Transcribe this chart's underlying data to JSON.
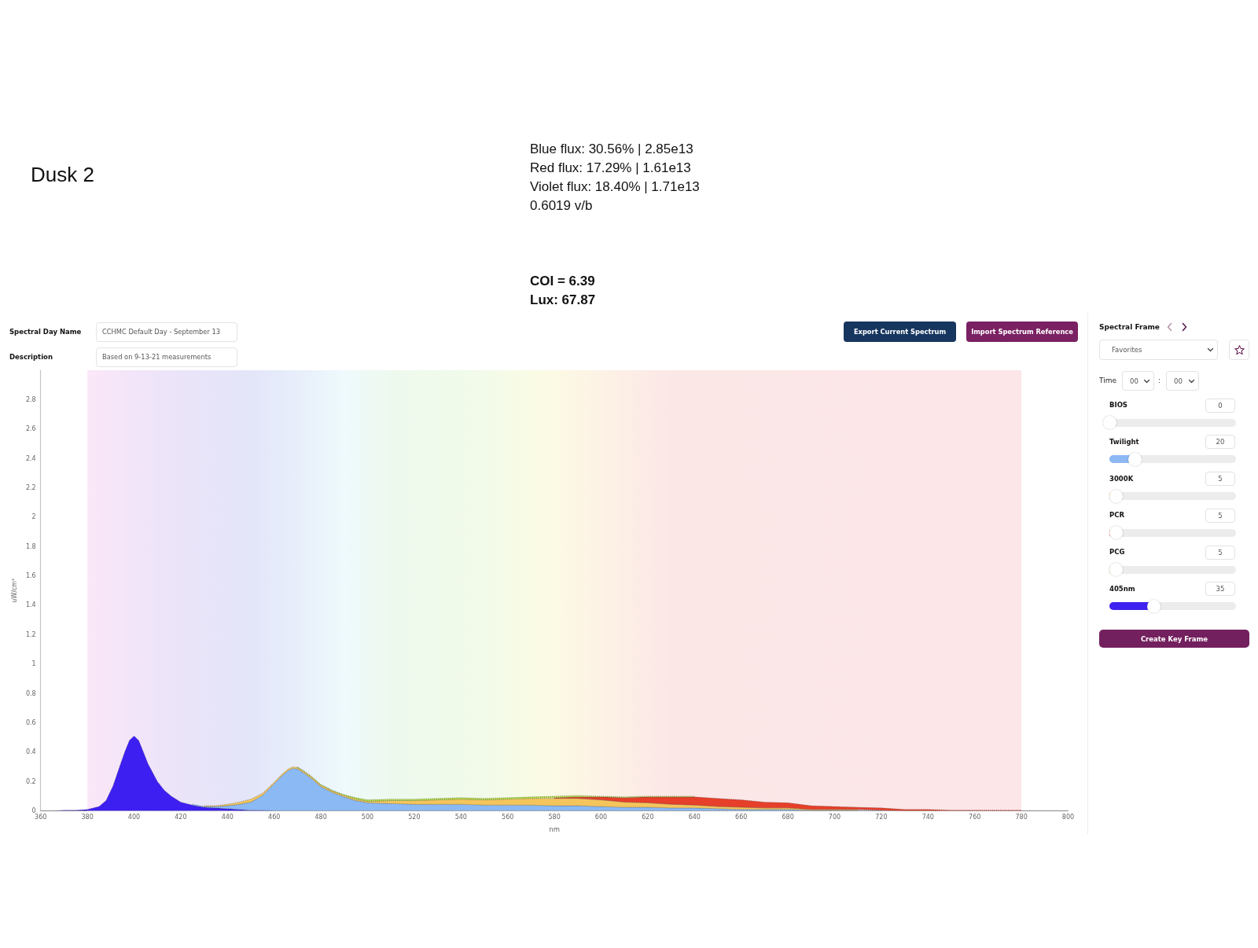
{
  "chart_data": [
    {
      "type": "other",
      "title": "Dusk 2",
      "annotations": [
        "Blue flux: 30.56% | 2.85e13",
        "Red flux: 17.29% | 1.61e13",
        "Violet flux: 18.40% | 1.71e13",
        "0.6019 v/b",
        "COI = 6.39",
        "Lux: 67.87"
      ]
    },
    {
      "type": "area",
      "stacked": true,
      "annotations": [
        "Spectral Day Name",
        "CCHMC Default Day - September 13",
        "Description",
        "Based on 9-13-21 measurements",
        "Export Current Spectrum",
        "Import Spectrum Reference"
      ],
      "xlabel": "nm",
      "ylabel": "uW/cm²",
      "x": [
        360,
        365,
        370,
        375,
        380,
        385,
        388,
        391,
        394,
        396,
        398,
        400,
        402,
        404,
        406,
        408,
        410,
        413,
        416,
        420,
        425,
        430,
        435,
        440,
        445,
        450,
        455,
        460,
        463,
        466,
        468,
        470,
        473,
        476,
        480,
        485,
        490,
        495,
        500,
        510,
        520,
        530,
        540,
        550,
        560,
        570,
        580,
        590,
        600,
        610,
        620,
        630,
        640,
        650,
        660,
        670,
        680,
        690,
        700,
        710,
        720,
        730,
        740,
        750,
        760,
        770,
        780,
        790,
        800
      ],
      "series": [
        {
          "color": "#3d1ff2",
          "values": [
            0,
            0,
            0.005,
            0.005,
            0.01,
            0.03,
            0.07,
            0.17,
            0.31,
            0.4,
            0.48,
            0.51,
            0.48,
            0.4,
            0.32,
            0.26,
            0.2,
            0.14,
            0.1,
            0.06,
            0.04,
            0.025,
            0.02,
            0.015,
            0.01,
            0.005,
            0.005,
            0,
            0,
            0,
            0,
            0,
            0,
            0,
            0,
            0,
            0,
            0,
            0,
            0,
            0,
            0,
            0,
            0,
            0,
            0,
            0,
            0,
            0,
            0,
            0,
            0,
            0,
            0,
            0,
            0,
            0,
            0,
            0,
            0,
            0,
            0,
            0,
            0,
            0,
            0,
            0,
            0,
            0
          ]
        },
        {
          "color": "#8ab9f4",
          "values": [
            null,
            null,
            null,
            null,
            null,
            null,
            null,
            null,
            null,
            null,
            null,
            null,
            null,
            null,
            null,
            null,
            null,
            null,
            null,
            null,
            0.005,
            0.005,
            0.01,
            0.02,
            0.035,
            0.055,
            0.1,
            0.185,
            0.235,
            0.275,
            0.29,
            0.285,
            0.255,
            0.22,
            0.165,
            0.125,
            0.095,
            0.07,
            0.055,
            0.05,
            0.045,
            0.045,
            0.045,
            0.04,
            0.04,
            0.04,
            0.035,
            0.035,
            0.03,
            0.025,
            0.025,
            0.02,
            0.02,
            0.015,
            0.01,
            0.01,
            0.01,
            0.005,
            0.005,
            0.005,
            0.005,
            null,
            null,
            null,
            null,
            null,
            null,
            null,
            null
          ]
        },
        {
          "color": "#f4c55c",
          "values": [
            null,
            null,
            null,
            null,
            null,
            null,
            null,
            null,
            null,
            null,
            null,
            null,
            null,
            null,
            null,
            null,
            null,
            null,
            null,
            null,
            null,
            0.005,
            0.005,
            0.01,
            0.015,
            0.02,
            0.015,
            0.01,
            0.01,
            0.01,
            0.01,
            0.01,
            0.01,
            0.01,
            0.01,
            0.01,
            0.01,
            0.01,
            0.01,
            0.02,
            0.025,
            0.03,
            0.035,
            0.035,
            0.04,
            0.045,
            0.05,
            0.05,
            0.045,
            0.035,
            0.03,
            0.025,
            0.02,
            0.015,
            0.015,
            0.01,
            0.01,
            0.005,
            0.005,
            0.005,
            null,
            null,
            null,
            null,
            null,
            null,
            null,
            null,
            null
          ]
        },
        {
          "color": "#e63f2a",
          "values": [
            null,
            null,
            null,
            null,
            null,
            null,
            null,
            null,
            null,
            null,
            null,
            null,
            null,
            null,
            null,
            null,
            null,
            null,
            null,
            null,
            null,
            null,
            null,
            null,
            null,
            null,
            null,
            null,
            null,
            null,
            null,
            null,
            null,
            null,
            null,
            null,
            null,
            null,
            null,
            null,
            null,
            null,
            null,
            null,
            null,
            null,
            0.005,
            0.01,
            0.02,
            0.03,
            0.04,
            0.05,
            0.055,
            0.055,
            0.05,
            0.04,
            0.035,
            0.025,
            0.02,
            0.015,
            0.015,
            0.01,
            0.01,
            0.005,
            0.005,
            0.005,
            0.005,
            null,
            null
          ]
        },
        {
          "color": "#b4dc4a",
          "values": [
            null,
            null,
            null,
            null,
            null,
            null,
            null,
            null,
            null,
            null,
            null,
            null,
            null,
            null,
            null,
            null,
            null,
            null,
            null,
            null,
            null,
            null,
            null,
            null,
            null,
            null,
            null,
            null,
            null,
            null,
            null,
            0.005,
            0.005,
            0.005,
            0.005,
            0.005,
            0.005,
            0.01,
            0.01,
            0.01,
            0.01,
            0.01,
            0.01,
            0.01,
            0.01,
            0.01,
            0.01,
            0.01,
            0.005,
            0.005,
            0.005,
            0.005,
            0.005,
            null,
            null,
            null,
            null,
            null,
            null,
            null,
            null,
            null,
            null,
            null,
            null,
            null,
            null,
            null,
            null
          ]
        }
      ],
      "xlim": [
        360,
        800
      ],
      "xticks": [
        360,
        380,
        400,
        420,
        440,
        460,
        480,
        500,
        520,
        540,
        560,
        580,
        600,
        620,
        640,
        660,
        680,
        700,
        720,
        740,
        760,
        780,
        800
      ],
      "ylim": [
        0,
        3
      ],
      "yticks": [
        0,
        0.2,
        0.4,
        0.6,
        0.8,
        1,
        1.2,
        1.4,
        1.6,
        1.8,
        2,
        2.2,
        2.4,
        2.6,
        2.8
      ],
      "bands": [
        {
          "axis": "x",
          "from": 380,
          "to": 780
        }
      ],
      "grid": false,
      "line_style": "dotted"
    },
    {
      "type": "other",
      "title": "Spectral Frame",
      "annotations": [
        "Favorites",
        "Time",
        "00",
        ":",
        "00",
        "BIOS",
        "0",
        "Twilight",
        "20",
        "3000K",
        "5",
        "PCR",
        "5",
        "PCG",
        "5",
        "405nm",
        "35",
        "Create Key Frame"
      ]
    }
  ]
}
